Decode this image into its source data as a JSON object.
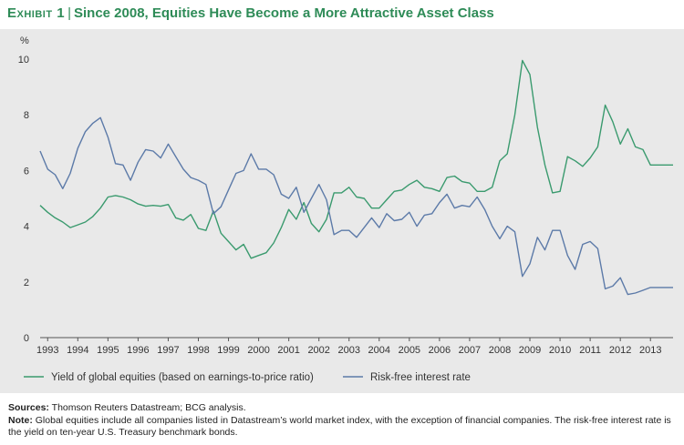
{
  "header": {
    "exhibit_label": "Exhibit 1",
    "title": "Since 2008, Equities Have Become a More Attractive Asset Class"
  },
  "chart_data": {
    "type": "line",
    "title": "Since 2008, Equities Have Become a More Attractive Asset Class",
    "ylabel": "%",
    "xlabel": "",
    "ylim": [
      0,
      10
    ],
    "yticks": [
      0,
      2,
      4,
      6,
      8,
      10
    ],
    "xlim": [
      1992.75,
      2013.75
    ],
    "xticks": [
      "1993",
      "1994",
      "1995",
      "1996",
      "1997",
      "1998",
      "1999",
      "2000",
      "2001",
      "2002",
      "2003",
      "2004",
      "2005",
      "2006",
      "2007",
      "2008",
      "2009",
      "2010",
      "2011",
      "2012",
      "2013"
    ],
    "series": [
      {
        "name": "Yield of global equities (based on earnings-to-price ratio)",
        "color": "#3a9a6e",
        "x": [
          1992.75,
          1993.0,
          1993.25,
          1993.5,
          1993.75,
          1994.0,
          1994.25,
          1994.5,
          1994.75,
          1995.0,
          1995.25,
          1995.5,
          1995.75,
          1996.0,
          1996.25,
          1996.5,
          1996.75,
          1997.0,
          1997.25,
          1997.5,
          1997.75,
          1998.0,
          1998.25,
          1998.5,
          1998.75,
          1999.0,
          1999.25,
          1999.5,
          1999.75,
          2000.0,
          2000.25,
          2000.5,
          2000.75,
          2001.0,
          2001.25,
          2001.5,
          2001.75,
          2002.0,
          2002.25,
          2002.5,
          2002.75,
          2003.0,
          2003.25,
          2003.5,
          2003.75,
          2004.0,
          2004.25,
          2004.5,
          2004.75,
          2005.0,
          2005.25,
          2005.5,
          2005.75,
          2006.0,
          2006.25,
          2006.5,
          2006.75,
          2007.0,
          2007.25,
          2007.5,
          2007.75,
          2008.0,
          2008.25,
          2008.5,
          2008.75,
          2009.0,
          2009.25,
          2009.5,
          2009.75,
          2010.0,
          2010.25,
          2010.5,
          2010.75,
          2011.0,
          2011.25,
          2011.5,
          2011.75,
          2012.0,
          2012.25,
          2012.5,
          2012.75,
          2013.0,
          2013.25,
          2013.5,
          2013.75
        ],
        "values": [
          4.75,
          4.5,
          4.3,
          4.15,
          3.95,
          4.05,
          4.15,
          4.35,
          4.65,
          5.05,
          5.1,
          5.05,
          4.95,
          4.8,
          4.72,
          4.75,
          4.72,
          4.78,
          4.3,
          4.22,
          4.42,
          3.92,
          3.85,
          4.55,
          3.75,
          3.45,
          3.15,
          3.35,
          2.85,
          2.95,
          3.05,
          3.4,
          3.95,
          4.6,
          4.25,
          4.85,
          4.1,
          3.8,
          4.25,
          5.2,
          5.2,
          5.4,
          5.05,
          5.0,
          4.65,
          4.65,
          4.95,
          5.25,
          5.3,
          5.5,
          5.65,
          5.4,
          5.35,
          5.25,
          5.75,
          5.8,
          5.6,
          5.55,
          5.25,
          5.25,
          5.4,
          6.35,
          6.6,
          8.0,
          9.95,
          9.45,
          7.55,
          6.2,
          5.2,
          5.25,
          6.5,
          6.35,
          6.15,
          6.45,
          6.85,
          8.35,
          7.75,
          6.95,
          7.5,
          6.85,
          6.75,
          6.2,
          6.2,
          6.2,
          6.2
        ]
      },
      {
        "name": "Risk-free interest rate",
        "color": "#5c7aa8",
        "x": [
          1992.75,
          1993.0,
          1993.25,
          1993.5,
          1993.75,
          1994.0,
          1994.25,
          1994.5,
          1994.75,
          1995.0,
          1995.25,
          1995.5,
          1995.75,
          1996.0,
          1996.25,
          1996.5,
          1996.75,
          1997.0,
          1997.25,
          1997.5,
          1997.75,
          1998.0,
          1998.25,
          1998.5,
          1998.75,
          1999.0,
          1999.25,
          1999.5,
          1999.75,
          2000.0,
          2000.25,
          2000.5,
          2000.75,
          2001.0,
          2001.25,
          2001.5,
          2001.75,
          2002.0,
          2002.25,
          2002.5,
          2002.75,
          2003.0,
          2003.25,
          2003.5,
          2003.75,
          2004.0,
          2004.25,
          2004.5,
          2004.75,
          2005.0,
          2005.25,
          2005.5,
          2005.75,
          2006.0,
          2006.25,
          2006.5,
          2006.75,
          2007.0,
          2007.25,
          2007.5,
          2007.75,
          2008.0,
          2008.25,
          2008.5,
          2008.75,
          2009.0,
          2009.25,
          2009.5,
          2009.75,
          2010.0,
          2010.25,
          2010.5,
          2010.75,
          2011.0,
          2011.25,
          2011.5,
          2011.75,
          2012.0,
          2012.25,
          2012.5,
          2012.75,
          2013.0,
          2013.25,
          2013.5,
          2013.75
        ],
        "values": [
          6.7,
          6.05,
          5.85,
          5.35,
          5.9,
          6.8,
          7.4,
          7.7,
          7.9,
          7.2,
          6.25,
          6.2,
          5.65,
          6.3,
          6.75,
          6.7,
          6.45,
          6.95,
          6.5,
          6.05,
          5.75,
          5.65,
          5.5,
          4.45,
          4.7,
          5.3,
          5.9,
          6.0,
          6.6,
          6.05,
          6.05,
          5.85,
          5.15,
          5.0,
          5.4,
          4.5,
          5.0,
          5.5,
          4.95,
          3.7,
          3.85,
          3.85,
          3.6,
          3.95,
          4.3,
          3.95,
          4.45,
          4.2,
          4.25,
          4.5,
          4.0,
          4.4,
          4.45,
          4.85,
          5.15,
          4.65,
          4.75,
          4.7,
          5.05,
          4.6,
          4.0,
          3.55,
          4.0,
          3.8,
          2.2,
          2.65,
          3.6,
          3.15,
          3.85,
          3.85,
          2.95,
          2.45,
          3.35,
          3.45,
          3.2,
          1.75,
          1.85,
          2.15,
          1.55,
          1.6,
          1.7,
          1.8,
          1.8,
          1.8,
          1.8
        ]
      }
    ],
    "legend": [
      {
        "label": "Yield of global equities (based on earnings-to-price ratio)",
        "color": "#3a9a6e"
      },
      {
        "label": "Risk-free interest rate",
        "color": "#5c7aa8"
      }
    ]
  },
  "notes": {
    "sources_label": "Sources:",
    "sources_text": " Thomson Reuters Datastream; BCG analysis.",
    "note_label": "Note:",
    "note_text": " Global equities include all companies listed in Datastream’s world market index, with the exception of financial companies. The risk-free interest rate is the yield on ten-year U.S. Treasury benchmark bonds."
  }
}
